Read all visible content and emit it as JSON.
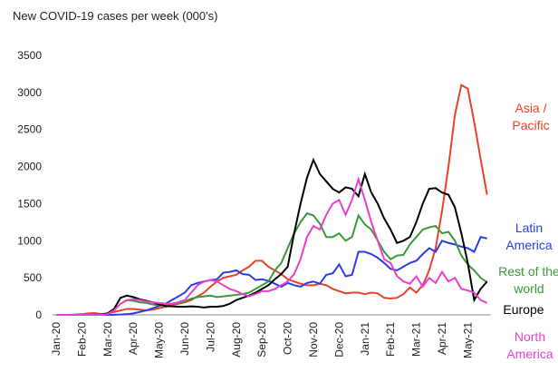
{
  "chart_data": {
    "type": "line",
    "title": "New COVID-19 cases per week (000's)",
    "categories": [
      "Jan-20",
      null,
      null,
      null,
      "Feb-20",
      null,
      null,
      null,
      "Mar-20",
      null,
      null,
      null,
      "Apr-20",
      null,
      null,
      null,
      "May-20",
      null,
      null,
      null,
      "Jun-20",
      null,
      null,
      null,
      "Jul-20",
      null,
      null,
      null,
      "Aug-20",
      null,
      null,
      null,
      "Sep-20",
      null,
      null,
      null,
      "Oct-20",
      null,
      null,
      null,
      "Nov-20",
      null,
      null,
      null,
      "Dec-20",
      null,
      null,
      null,
      "Jan-21",
      null,
      null,
      null,
      "Feb-21",
      null,
      null,
      null,
      "Mar-21",
      null,
      null,
      null,
      "Apr-21",
      null,
      null,
      null,
      "May-21",
      null,
      null,
      null
    ],
    "ylim": [
      0,
      3500
    ],
    "yticks": [
      0,
      500,
      1000,
      1500,
      2000,
      2500,
      3000,
      3500
    ],
    "grid": false,
    "series": [
      {
        "name": "Asia / Pacific",
        "color": "#e8412c",
        "values": [
          0,
          0,
          0,
          5,
          10,
          20,
          25,
          10,
          20,
          40,
          60,
          80,
          80,
          70,
          60,
          70,
          90,
          110,
          130,
          150,
          170,
          200,
          250,
          300,
          380,
          450,
          500,
          520,
          540,
          600,
          650,
          730,
          730,
          650,
          600,
          550,
          480,
          450,
          420,
          400,
          400,
          420,
          400,
          350,
          320,
          290,
          300,
          300,
          280,
          300,
          290,
          230,
          220,
          230,
          280,
          370,
          300,
          400,
          600,
          900,
          1400,
          2000,
          2700,
          3100,
          3050,
          2600,
          2100,
          1620
        ]
      },
      {
        "name": "Latin America",
        "color": "#2b3ee6",
        "values": [
          0,
          0,
          0,
          0,
          0,
          0,
          0,
          0,
          0,
          2,
          5,
          10,
          20,
          40,
          60,
          90,
          120,
          150,
          200,
          250,
          300,
          400,
          430,
          450,
          470,
          480,
          570,
          580,
          600,
          550,
          540,
          470,
          480,
          460,
          420,
          380,
          430,
          400,
          380,
          430,
          450,
          420,
          540,
          560,
          680,
          520,
          540,
          850,
          850,
          820,
          770,
          700,
          620,
          600,
          650,
          700,
          730,
          820,
          900,
          850,
          1000,
          970,
          950,
          920,
          900,
          850,
          1050,
          1030
        ]
      },
      {
        "name": "Rest of the world",
        "color": "#3a9a3a",
        "values": [
          0,
          0,
          0,
          0,
          0,
          0,
          0,
          0,
          20,
          60,
          150,
          200,
          190,
          170,
          160,
          140,
          130,
          140,
          150,
          160,
          180,
          220,
          240,
          250,
          260,
          240,
          250,
          260,
          270,
          280,
          300,
          350,
          400,
          450,
          600,
          700,
          900,
          1100,
          1250,
          1370,
          1340,
          1230,
          1050,
          1050,
          1100,
          1000,
          1050,
          1340,
          1220,
          1150,
          1000,
          850,
          750,
          800,
          810,
          950,
          1050,
          1150,
          1180,
          1200,
          1100,
          1120,
          1000,
          800,
          680,
          600,
          500,
          440
        ]
      },
      {
        "name": "Europe",
        "color": "#000000",
        "values": [
          0,
          0,
          0,
          0,
          0,
          0,
          0,
          5,
          20,
          80,
          230,
          260,
          240,
          210,
          190,
          170,
          140,
          120,
          115,
          110,
          110,
          115,
          110,
          100,
          110,
          110,
          120,
          150,
          200,
          230,
          260,
          300,
          350,
          400,
          480,
          550,
          650,
          1100,
          1500,
          1850,
          2090,
          1900,
          1800,
          1700,
          1650,
          1720,
          1700,
          1600,
          1900,
          1650,
          1500,
          1300,
          1150,
          970,
          1000,
          1050,
          1250,
          1500,
          1700,
          1710,
          1650,
          1620,
          1450,
          1100,
          700,
          200,
          350,
          450
        ]
      },
      {
        "name": "North America",
        "color": "#e83fd0",
        "values": [
          0,
          0,
          0,
          0,
          0,
          0,
          0,
          0,
          10,
          60,
          150,
          200,
          210,
          200,
          180,
          170,
          160,
          150,
          150,
          170,
          200,
          300,
          400,
          450,
          470,
          450,
          400,
          350,
          320,
          280,
          250,
          280,
          320,
          320,
          350,
          400,
          450,
          550,
          750,
          1050,
          1200,
          1150,
          1350,
          1500,
          1550,
          1350,
          1550,
          1830,
          1550,
          1250,
          1000,
          750,
          700,
          520,
          450,
          420,
          520,
          380,
          500,
          430,
          580,
          450,
          500,
          350,
          330,
          300,
          200,
          160
        ]
      }
    ]
  }
}
